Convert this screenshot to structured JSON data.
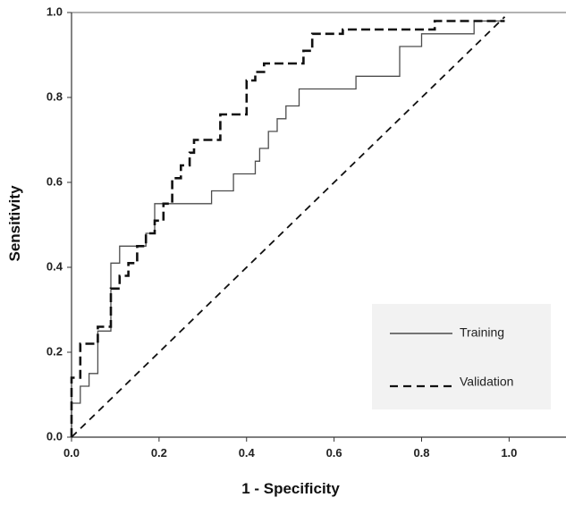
{
  "chart_data": {
    "type": "line",
    "title": "",
    "xlabel": "1 - Specificity",
    "ylabel": "Sensitivity",
    "xlim": [
      0,
      1.13
    ],
    "ylim": [
      0,
      1.0
    ],
    "x_ticks": [
      "0.0",
      "0.2",
      "0.4",
      "0.6",
      "0.8",
      "1.0"
    ],
    "y_ticks": [
      "0.0",
      "0.2",
      "0.4",
      "0.6",
      "0.8",
      "1.0"
    ],
    "grid": false,
    "legend_position": "bottom-right",
    "series": [
      {
        "name": "Training",
        "style": "solid",
        "x": [
          0,
          0,
          0.02,
          0.02,
          0.04,
          0.04,
          0.06,
          0.06,
          0.09,
          0.09,
          0.11,
          0.11,
          0.12,
          0.12,
          0.17,
          0.17,
          0.19,
          0.19,
          0.23,
          0.23,
          0.32,
          0.32,
          0.37,
          0.37,
          0.42,
          0.42,
          0.43,
          0.43,
          0.45,
          0.45,
          0.47,
          0.47,
          0.49,
          0.49,
          0.5,
          0.5,
          0.52,
          0.52,
          0.55,
          0.55,
          0.65,
          0.65,
          0.75,
          0.75,
          0.8,
          0.8,
          0.92,
          0.92,
          0.99
        ],
        "y": [
          0,
          0.08,
          0.08,
          0.12,
          0.12,
          0.15,
          0.15,
          0.25,
          0.25,
          0.41,
          0.41,
          0.45,
          0.45,
          0.45,
          0.45,
          0.48,
          0.48,
          0.55,
          0.55,
          0.55,
          0.55,
          0.58,
          0.58,
          0.62,
          0.62,
          0.65,
          0.65,
          0.68,
          0.68,
          0.72,
          0.72,
          0.75,
          0.75,
          0.78,
          0.78,
          0.78,
          0.78,
          0.82,
          0.82,
          0.82,
          0.82,
          0.85,
          0.85,
          0.92,
          0.92,
          0.95,
          0.95,
          0.98,
          0.98
        ]
      },
      {
        "name": "Validation",
        "style": "dashed",
        "x": [
          0,
          0,
          0.02,
          0.02,
          0.04,
          0.04,
          0.06,
          0.06,
          0.09,
          0.09,
          0.11,
          0.11,
          0.13,
          0.13,
          0.15,
          0.15,
          0.17,
          0.17,
          0.19,
          0.19,
          0.21,
          0.21,
          0.23,
          0.23,
          0.25,
          0.25,
          0.27,
          0.27,
          0.28,
          0.28,
          0.32,
          0.32,
          0.34,
          0.34,
          0.38,
          0.38,
          0.4,
          0.4,
          0.42,
          0.42,
          0.44,
          0.44,
          0.5,
          0.5,
          0.53,
          0.53,
          0.55,
          0.55,
          0.58,
          0.58,
          0.62,
          0.62,
          0.64,
          0.64,
          0.83,
          0.83,
          0.92,
          0.92,
          0.99
        ],
        "y": [
          0,
          0.14,
          0.14,
          0.22,
          0.22,
          0.22,
          0.22,
          0.26,
          0.26,
          0.35,
          0.35,
          0.38,
          0.38,
          0.41,
          0.41,
          0.45,
          0.45,
          0.48,
          0.48,
          0.51,
          0.51,
          0.55,
          0.55,
          0.61,
          0.61,
          0.64,
          0.64,
          0.67,
          0.67,
          0.7,
          0.7,
          0.7,
          0.7,
          0.76,
          0.76,
          0.76,
          0.76,
          0.84,
          0.84,
          0.86,
          0.86,
          0.88,
          0.88,
          0.88,
          0.88,
          0.91,
          0.91,
          0.95,
          0.95,
          0.95,
          0.95,
          0.96,
          0.96,
          0.96,
          0.96,
          0.98,
          0.98,
          0.98,
          0.98
        ]
      },
      {
        "name": "",
        "style": "dashed-reference",
        "x": [
          0,
          0.99
        ],
        "y": [
          0,
          0.99
        ]
      }
    ]
  }
}
